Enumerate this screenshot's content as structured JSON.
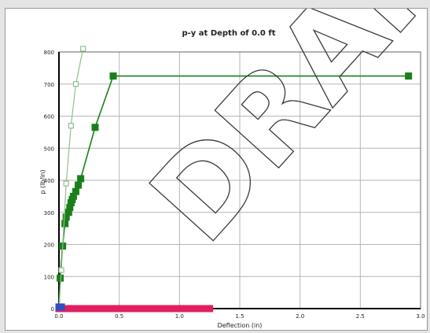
{
  "chart_data": {
    "type": "line",
    "title": "p-y at Depth of 0.0 ft",
    "xlabel": "Deflection (in)",
    "ylabel": "p (lb/in)",
    "xlim": [
      0.0,
      3.0
    ],
    "ylim": [
      0,
      800
    ],
    "x_ticks": [
      "0.0",
      "0.5",
      "1.0",
      "1.5",
      "2.0",
      "2.5",
      "3.0"
    ],
    "y_ticks": [
      "0",
      "100",
      "200",
      "300",
      "400",
      "500",
      "600",
      "700",
      "800"
    ],
    "grid": true,
    "series": [
      {
        "color": "#1a7f1a",
        "marker": "filled-square",
        "x": [
          0.0,
          0.01,
          0.03,
          0.05,
          0.06,
          0.08,
          0.09,
          0.1,
          0.11,
          0.12,
          0.14,
          0.16,
          0.18,
          0.3,
          0.45,
          2.9
        ],
        "y": [
          0,
          95,
          195,
          265,
          285,
          300,
          315,
          330,
          340,
          350,
          365,
          385,
          405,
          565,
          725,
          725
        ]
      },
      {
        "color": "#8fbf8f",
        "marker": "open-square",
        "x": [
          0.0,
          0.02,
          0.06,
          0.1,
          0.14,
          0.2
        ],
        "y": [
          0,
          120,
          390,
          570,
          700,
          810
        ]
      },
      {
        "color": "#e02060",
        "marker": "filled-square",
        "x": [
          0.0,
          0.05,
          0.1,
          0.15,
          0.2,
          0.25,
          0.3,
          0.35,
          0.4,
          0.45,
          0.5,
          0.55,
          0.6,
          0.65,
          0.7,
          0.75,
          0.8,
          0.85,
          0.9,
          0.95,
          1.0,
          1.05,
          1.1,
          1.15,
          1.2,
          1.25
        ],
        "y": [
          0,
          0,
          0,
          0,
          0,
          0,
          0,
          0,
          0,
          0,
          0,
          0,
          0,
          0,
          0,
          0,
          0,
          0,
          0,
          0,
          0,
          0,
          0,
          0,
          0,
          0
        ]
      },
      {
        "color": "#3050c0",
        "marker": "filled-square",
        "x": [
          0.0,
          0.02
        ],
        "y": [
          5,
          5
        ]
      }
    ]
  },
  "watermark": "DRAFT"
}
